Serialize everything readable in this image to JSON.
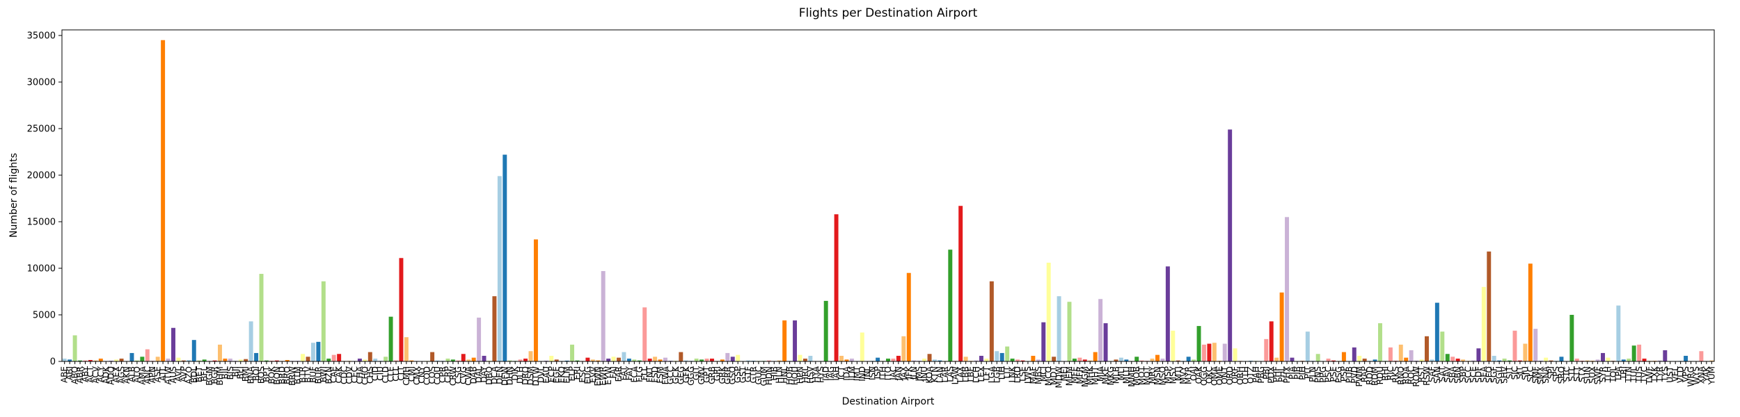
{
  "chart_data": {
    "type": "bar",
    "title": "Flights per Destination Airport",
    "x_label": "Destination Airport",
    "y_label": "Number of flights",
    "categories": [
      "ABE",
      "ABI",
      "ABQ",
      "ABR",
      "ABY",
      "ACT",
      "ACV",
      "ACY",
      "ADK",
      "ADQ",
      "AEX",
      "AGS",
      "AKN",
      "ALB",
      "ALO",
      "AMA",
      "ANC",
      "APN",
      "ASE",
      "ATL",
      "ATW",
      "AUS",
      "AVL",
      "AVP",
      "AZO",
      "BDL",
      "BET",
      "BFL",
      "BGM",
      "BGR",
      "BHM",
      "BIL",
      "BIS",
      "BJI",
      "BLI",
      "BMI",
      "BNA",
      "BOI",
      "BOS",
      "BPT",
      "BQK",
      "BQN",
      "BRD",
      "BRO",
      "BRW",
      "BTM",
      "BTR",
      "BTV",
      "BUF",
      "BUR",
      "BWI",
      "BZN",
      "CAE",
      "CAK",
      "CDC",
      "CDV",
      "CEC",
      "CHA",
      "CHO",
      "CHS",
      "CID",
      "CIU",
      "CLD",
      "CLE",
      "CLL",
      "CLT",
      "CMH",
      "CMI",
      "CMX",
      "CNY",
      "COD",
      "COS",
      "COU",
      "CPR",
      "CRP",
      "CRW",
      "CSG",
      "CVG",
      "CWA",
      "DAB",
      "DAL",
      "DAY",
      "DBQ",
      "DCA",
      "DEN",
      "DFW",
      "DHN",
      "DIK",
      "DLH",
      "DRO",
      "DSM",
      "DTW",
      "DVL",
      "EAU",
      "ECP",
      "EGE",
      "EKO",
      "ELM",
      "ELP",
      "ERI",
      "ESC",
      "EUG",
      "EVV",
      "EWN",
      "EWR",
      "EYW",
      "FAI",
      "FAR",
      "FAT",
      "FAY",
      "FCA",
      "FLG",
      "FLL",
      "FNT",
      "FSD",
      "FSM",
      "FWA",
      "GCC",
      "GCK",
      "GEG",
      "GFK",
      "GGG",
      "GJT",
      "GNV",
      "GPT",
      "GRB",
      "GRI",
      "GRK",
      "GRR",
      "GSO",
      "GSP",
      "GST",
      "GTF",
      "GTR",
      "GUC",
      "GUM",
      "HDN",
      "HIB",
      "HLN",
      "HNL",
      "HOB",
      "HOU",
      "HPN",
      "HRL",
      "HSV",
      "HYA",
      "HYS",
      "IAD",
      "IAG",
      "IAH",
      "ICT",
      "IDA",
      "ILM",
      "IMT",
      "IND",
      "INL",
      "ISN",
      "ISP",
      "ITH",
      "ITO",
      "JAC",
      "JAN",
      "JAX",
      "JFK",
      "JLN",
      "JMS",
      "JNU",
      "KOA",
      "KTN",
      "LAN",
      "LAR",
      "LAS",
      "LAW",
      "LAX",
      "LBB",
      "LBE",
      "LCH",
      "LEX",
      "LFT",
      "LGA",
      "LGB",
      "LIH",
      "LIT",
      "LNK",
      "LRD",
      "LSE",
      "LWS",
      "MAF",
      "MBS",
      "MCI",
      "MCO",
      "MDT",
      "MDW",
      "MEI",
      "MEM",
      "MFE",
      "MFR",
      "MGM",
      "MHK",
      "MHT",
      "MIA",
      "MKE",
      "MKG",
      "MLB",
      "MLI",
      "MLU",
      "MMH",
      "MOB",
      "MOT",
      "MQT",
      "MRY",
      "MSN",
      "MSO",
      "MSP",
      "MSY",
      "MTJ",
      "MVY",
      "MYR",
      "OAJ",
      "OAK",
      "OGG",
      "OKC",
      "OMA",
      "OME",
      "ONT",
      "ORD",
      "ORF",
      "ORH",
      "OTH",
      "OTZ",
      "PAH",
      "PBG",
      "PBI",
      "PDX",
      "PHF",
      "PHL",
      "PHX",
      "PIA",
      "PIB",
      "PIH",
      "PIT",
      "PLN",
      "PNS",
      "PPG",
      "PSC",
      "PSE",
      "PSG",
      "PSP",
      "PUB",
      "PVD",
      "PWM",
      "RAP",
      "RDD",
      "RDM",
      "RDU",
      "RHI",
      "RIC",
      "RKS",
      "RNO",
      "ROA",
      "ROC",
      "ROW",
      "RST",
      "RSW",
      "SAF",
      "SAN",
      "SAT",
      "SAV",
      "SBA",
      "SBN",
      "SBP",
      "SCC",
      "SCE",
      "SDF",
      "SEA",
      "SFO",
      "SGF",
      "SGU",
      "SHV",
      "SIT",
      "SJC",
      "SJT",
      "SJU",
      "SLC",
      "SMF",
      "SMX",
      "SNA",
      "SPI",
      "SPS",
      "SRQ",
      "STC",
      "STL",
      "STT",
      "STX",
      "SUN",
      "SUX",
      "SWF",
      "SYR",
      "TLH",
      "TOL",
      "TPA",
      "TRI",
      "TTN",
      "TUL",
      "TUS",
      "TVC",
      "TWF",
      "TXK",
      "TYR",
      "TYS",
      "UST",
      "VEL",
      "VLD",
      "VPS",
      "WRG",
      "WYS",
      "XNA",
      "YAK",
      "YUM"
    ],
    "values": [
      300,
      200,
      2800,
      100,
      100,
      150,
      100,
      300,
      10,
      60,
      200,
      300,
      10,
      900,
      100,
      500,
      1300,
      50,
      500,
      34500,
      300,
      3600,
      400,
      100,
      150,
      2300,
      100,
      200,
      50,
      100,
      1800,
      300,
      300,
      50,
      200,
      250,
      4300,
      900,
      9400,
      100,
      80,
      100,
      50,
      150,
      60,
      50,
      800,
      500,
      2000,
      2100,
      8600,
      300,
      700,
      800,
      50,
      50,
      50,
      300,
      200,
      1000,
      300,
      50,
      500,
      4800,
      100,
      11100,
      2600,
      100,
      50,
      30,
      50,
      1000,
      100,
      50,
      300,
      200,
      100,
      800,
      200,
      400,
      4700,
      600,
      60,
      7000,
      19900,
      22200,
      100,
      50,
      200,
      300,
      1100,
      13100,
      30,
      60,
      600,
      200,
      50,
      80,
      1800,
      100,
      50,
      400,
      200,
      100,
      9700,
      300,
      500,
      400,
      1000,
      300,
      200,
      100,
      5800,
      300,
      500,
      200,
      400,
      60,
      60,
      1000,
      100,
      50,
      300,
      200,
      300,
      300,
      50,
      200,
      900,
      500,
      700,
      10,
      100,
      60,
      50,
      50,
      100,
      40,
      100,
      4400,
      50,
      4400,
      700,
      300,
      600,
      20,
      40,
      6500,
      30,
      15800,
      600,
      200,
      300,
      40,
      3100,
      40,
      70,
      400,
      50,
      300,
      300,
      600,
      2700,
      9500,
      100,
      50,
      300,
      800,
      200,
      100,
      50,
      12000,
      60,
      16700,
      500,
      50,
      100,
      600,
      300,
      8600,
      1100,
      900,
      1600,
      300,
      200,
      100,
      40,
      600,
      200,
      4200,
      10600,
      500,
      7000,
      30,
      6400,
      300,
      400,
      200,
      100,
      1000,
      6700,
      4100,
      40,
      200,
      400,
      200,
      50,
      500,
      100,
      50,
      300,
      700,
      300,
      10200,
      3300,
      100,
      60,
      500,
      200,
      3800,
      1800,
      1900,
      2000,
      60,
      1900,
      24900,
      1400,
      50,
      40,
      60,
      50,
      30,
      2400,
      4300,
      400,
      7400,
      15500,
      400,
      30,
      60,
      3200,
      50,
      800,
      20,
      300,
      100,
      50,
      1000,
      30,
      1500,
      600,
      300,
      60,
      200,
      4100,
      50,
      1500,
      60,
      1800,
      400,
      1200,
      60,
      200,
      2700,
      200,
      6300,
      3200,
      800,
      500,
      300,
      200,
      50,
      100,
      1400,
      8000,
      11800,
      600,
      100,
      300,
      100,
      3300,
      100,
      1900,
      10500,
      3500,
      60,
      400,
      100,
      60,
      500,
      20,
      5000,
      300,
      60,
      100,
      60,
      200,
      900,
      400,
      60,
      6000,
      200,
      300,
      1700,
      1800,
      300,
      60,
      60,
      100,
      1200,
      10,
      30,
      60,
      600,
      40,
      30,
      1100,
      40,
      100
    ],
    "colors": [
      "#a6cee3",
      "#1f78b4",
      "#b2df8a",
      "#33a02c",
      "#fb9a99",
      "#e31a1c",
      "#fdbf6f",
      "#ff7f00",
      "#cab2d6",
      "#6a3d9a",
      "#ffff99",
      "#b15928"
    ],
    "ylim": [
      0,
      35600
    ],
    "yticks": [
      0,
      5000,
      10000,
      15000,
      20000,
      25000,
      30000,
      35000
    ],
    "grid": false
  }
}
